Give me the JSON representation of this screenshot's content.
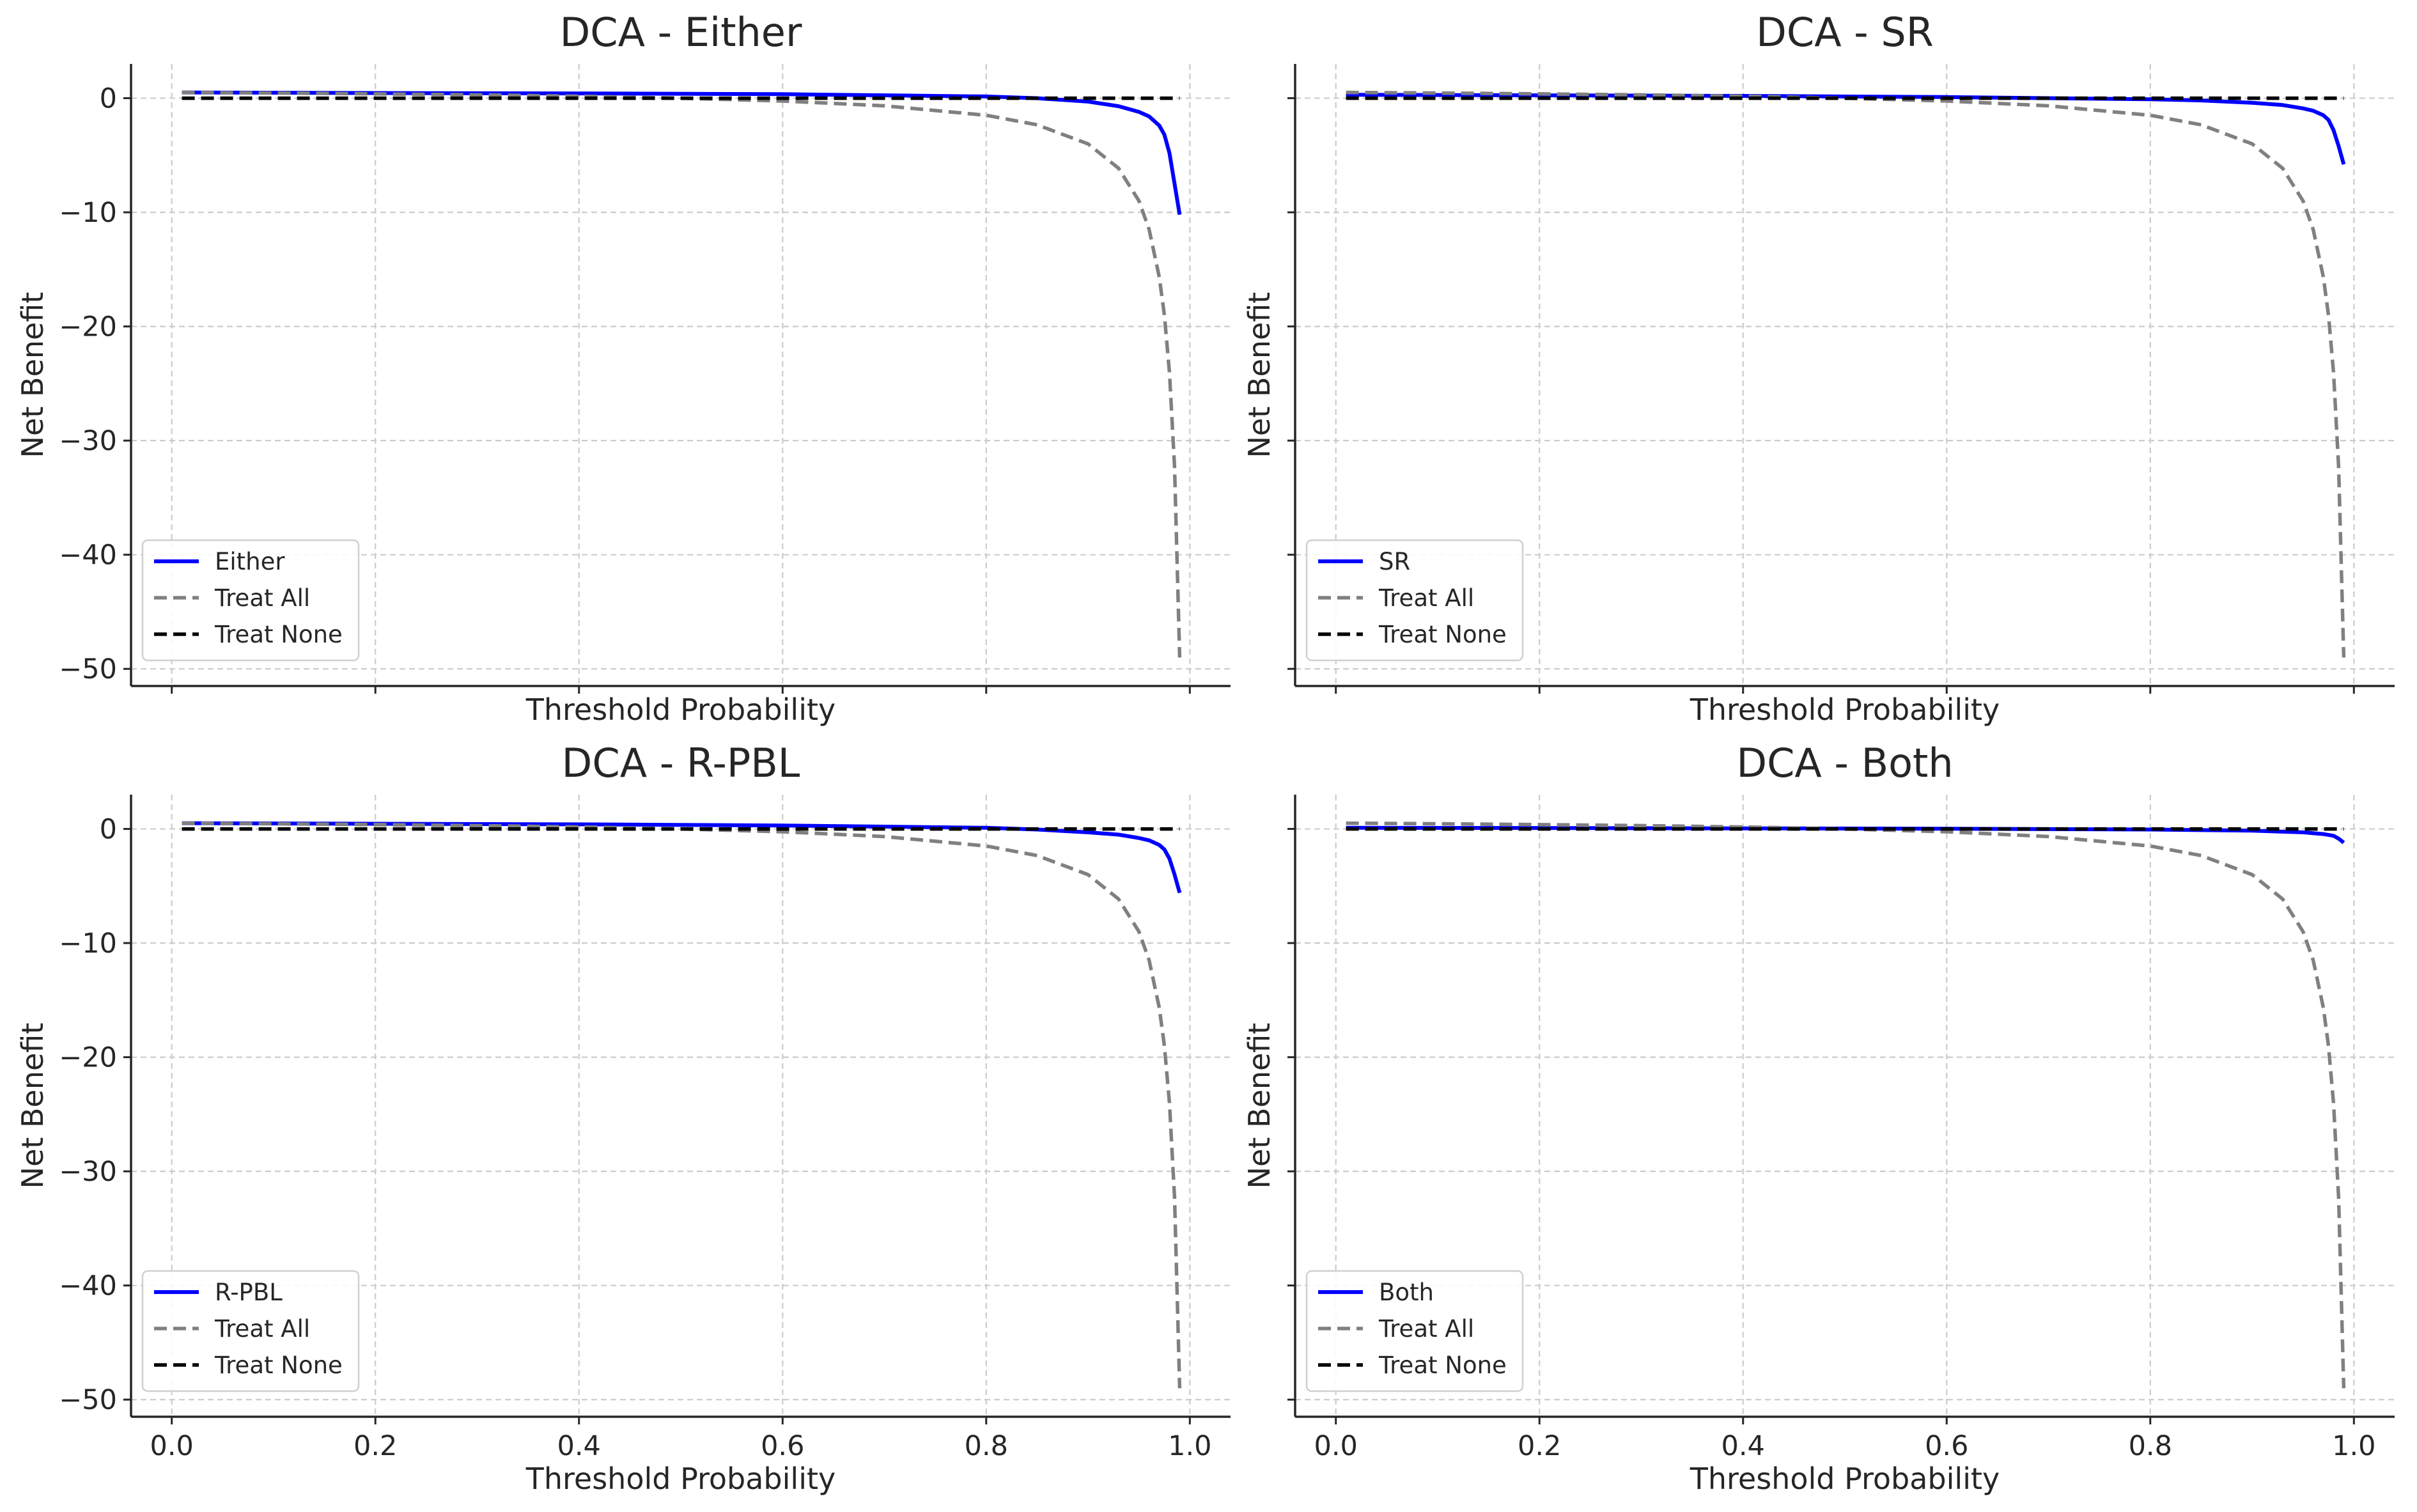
{
  "figure": {
    "xlabel": "Threshold Probability",
    "ylabel": "Net Benefit",
    "xticks": [
      {
        "value": 0.0,
        "label": "0.0"
      },
      {
        "value": 0.2,
        "label": "0.2"
      },
      {
        "value": 0.4,
        "label": "0.4"
      },
      {
        "value": 0.6,
        "label": "0.6"
      },
      {
        "value": 0.8,
        "label": "0.8"
      },
      {
        "value": 1.0,
        "label": "1.0"
      }
    ],
    "yticks": [
      {
        "value": 0,
        "label": "0"
      },
      {
        "value": -10,
        "label": "−10"
      },
      {
        "value": -20,
        "label": "−20"
      },
      {
        "value": -30,
        "label": "−30"
      },
      {
        "value": -40,
        "label": "−40"
      },
      {
        "value": -50,
        "label": "−50"
      }
    ],
    "colors": {
      "model": "#0000ff",
      "treat_all": "#808080",
      "treat_none": "#000000",
      "grid": "#cccccc",
      "text": "#262626"
    },
    "treat_all_label": "Treat All",
    "treat_none_label": "Treat None"
  },
  "chart_data": [
    {
      "type": "line",
      "title": "DCA - Either",
      "xlabel": "Threshold Probability",
      "ylabel": "Net Benefit",
      "xlim": [
        -0.04,
        1.04
      ],
      "ylim": [
        -51.5,
        3
      ],
      "legend_position": "lower-left",
      "series": [
        {
          "name": "Either",
          "style": "solid",
          "color": "#0000ff",
          "x": [
            0.01,
            0.2,
            0.4,
            0.6,
            0.8,
            0.85,
            0.9,
            0.93,
            0.95,
            0.96,
            0.97,
            0.975,
            0.98,
            0.985,
            0.99
          ],
          "y": [
            0.5,
            0.45,
            0.42,
            0.35,
            0.15,
            0.0,
            -0.3,
            -0.7,
            -1.2,
            -1.6,
            -2.4,
            -3.2,
            -4.8,
            -7.5,
            -10.2
          ]
        },
        {
          "name": "Treat All",
          "style": "dashed",
          "color": "#808080",
          "x": [
            0.01,
            0.1,
            0.2,
            0.3,
            0.4,
            0.5,
            0.6,
            0.7,
            0.8,
            0.85,
            0.9,
            0.93,
            0.95,
            0.96,
            0.97,
            0.975,
            0.98,
            0.985,
            0.99
          ],
          "y": [
            0.5,
            0.45,
            0.38,
            0.29,
            0.17,
            0.0,
            -0.25,
            -0.67,
            -1.5,
            -2.33,
            -4.0,
            -6.14,
            -9.0,
            -11.5,
            -15.67,
            -19.0,
            -24.0,
            -32.3,
            -49.0
          ]
        },
        {
          "name": "Treat None",
          "style": "dashed",
          "color": "#000000",
          "x": [
            0.01,
            0.99
          ],
          "y": [
            0,
            0
          ]
        }
      ]
    },
    {
      "type": "line",
      "title": "DCA - SR",
      "xlabel": "Threshold Probability",
      "ylabel": "Net Benefit",
      "xlim": [
        -0.04,
        1.04
      ],
      "ylim": [
        -51.5,
        3
      ],
      "legend_position": "lower-left",
      "series": [
        {
          "name": "SR",
          "style": "solid",
          "color": "#0000ff",
          "x": [
            0.01,
            0.2,
            0.4,
            0.6,
            0.8,
            0.85,
            0.9,
            0.93,
            0.95,
            0.96,
            0.97,
            0.975,
            0.98,
            0.985,
            0.99
          ],
          "y": [
            0.3,
            0.25,
            0.2,
            0.1,
            -0.1,
            -0.2,
            -0.4,
            -0.6,
            -0.9,
            -1.1,
            -1.5,
            -1.9,
            -2.8,
            -4.2,
            -5.8
          ]
        },
        {
          "name": "Treat All",
          "style": "dashed",
          "color": "#808080",
          "x": [
            0.01,
            0.1,
            0.2,
            0.3,
            0.4,
            0.5,
            0.6,
            0.7,
            0.8,
            0.85,
            0.9,
            0.93,
            0.95,
            0.96,
            0.97,
            0.975,
            0.98,
            0.985,
            0.99
          ],
          "y": [
            0.5,
            0.45,
            0.38,
            0.29,
            0.17,
            0.0,
            -0.25,
            -0.67,
            -1.5,
            -2.33,
            -4.0,
            -6.14,
            -9.0,
            -11.5,
            -15.67,
            -19.0,
            -24.0,
            -32.3,
            -49.0
          ]
        },
        {
          "name": "Treat None",
          "style": "dashed",
          "color": "#000000",
          "x": [
            0.01,
            0.99
          ],
          "y": [
            0,
            0
          ]
        }
      ]
    },
    {
      "type": "line",
      "title": "DCA - R-PBL",
      "xlabel": "Threshold Probability",
      "ylabel": "Net Benefit",
      "xlim": [
        -0.04,
        1.04
      ],
      "ylim": [
        -51.5,
        3
      ],
      "legend_position": "lower-left",
      "series": [
        {
          "name": "R-PBL",
          "style": "solid",
          "color": "#0000ff",
          "x": [
            0.01,
            0.2,
            0.4,
            0.6,
            0.8,
            0.85,
            0.9,
            0.93,
            0.95,
            0.96,
            0.97,
            0.975,
            0.98,
            0.985,
            0.99
          ],
          "y": [
            0.5,
            0.45,
            0.4,
            0.3,
            0.1,
            -0.05,
            -0.3,
            -0.5,
            -0.8,
            -1.0,
            -1.4,
            -1.8,
            -2.6,
            -4.0,
            -5.6
          ]
        },
        {
          "name": "Treat All",
          "style": "dashed",
          "color": "#808080",
          "x": [
            0.01,
            0.1,
            0.2,
            0.3,
            0.4,
            0.5,
            0.6,
            0.7,
            0.8,
            0.85,
            0.9,
            0.93,
            0.95,
            0.96,
            0.97,
            0.975,
            0.98,
            0.985,
            0.99
          ],
          "y": [
            0.5,
            0.45,
            0.38,
            0.29,
            0.17,
            0.0,
            -0.25,
            -0.67,
            -1.5,
            -2.33,
            -4.0,
            -6.14,
            -9.0,
            -11.5,
            -15.67,
            -19.0,
            -24.0,
            -32.3,
            -49.0
          ]
        },
        {
          "name": "Treat None",
          "style": "dashed",
          "color": "#000000",
          "x": [
            0.01,
            0.99
          ],
          "y": [
            0,
            0
          ]
        }
      ]
    },
    {
      "type": "line",
      "title": "DCA - Both",
      "xlabel": "Threshold Probability",
      "ylabel": "Net Benefit",
      "xlim": [
        -0.04,
        1.04
      ],
      "ylim": [
        -51.5,
        3
      ],
      "legend_position": "lower-left",
      "series": [
        {
          "name": "Both",
          "style": "solid",
          "color": "#0000ff",
          "x": [
            0.01,
            0.2,
            0.4,
            0.6,
            0.8,
            0.9,
            0.95,
            0.97,
            0.98,
            0.985,
            0.99
          ],
          "y": [
            0.1,
            0.08,
            0.05,
            0.02,
            -0.05,
            -0.15,
            -0.3,
            -0.45,
            -0.6,
            -0.85,
            -1.2
          ]
        },
        {
          "name": "Treat All",
          "style": "dashed",
          "color": "#808080",
          "x": [
            0.01,
            0.1,
            0.2,
            0.3,
            0.4,
            0.5,
            0.6,
            0.7,
            0.8,
            0.85,
            0.9,
            0.93,
            0.95,
            0.96,
            0.97,
            0.975,
            0.98,
            0.985,
            0.99
          ],
          "y": [
            0.5,
            0.45,
            0.38,
            0.29,
            0.17,
            0.0,
            -0.25,
            -0.67,
            -1.5,
            -2.33,
            -4.0,
            -6.14,
            -9.0,
            -11.5,
            -15.67,
            -19.0,
            -24.0,
            -32.3,
            -49.0
          ]
        },
        {
          "name": "Treat None",
          "style": "dashed",
          "color": "#000000",
          "x": [
            0.01,
            0.99
          ],
          "y": [
            0,
            0
          ]
        }
      ]
    }
  ]
}
